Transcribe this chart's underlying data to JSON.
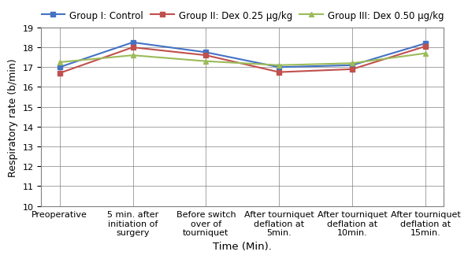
{
  "x_labels": [
    "Preoperative",
    "5 min. after\ninitiation of\nsurgery",
    "Before switch\nover of\ntourniquet",
    "After tourniquet\ndeflation at\n5min.",
    "After tourniquet\ndeflation at\n10min.",
    "After tourniquet\ndeflation at\n15min."
  ],
  "xlabel": "Time (Min).",
  "ylabel": "Respiratory rate (b/min)",
  "ylim": [
    10,
    19
  ],
  "yticks": [
    10,
    11,
    12,
    13,
    14,
    15,
    16,
    17,
    18,
    19
  ],
  "series": [
    {
      "label": "Group I: Control",
      "color": "#4472C4",
      "marker": "s",
      "values": [
        17.0,
        18.25,
        17.75,
        17.0,
        17.1,
        18.2
      ]
    },
    {
      "label": "Group II: Dex 0.25 μg/kg",
      "color": "#C0504D",
      "marker": "s",
      "values": [
        16.7,
        18.0,
        17.6,
        16.75,
        16.9,
        18.05
      ]
    },
    {
      "label": "Group III: Dex 0.50 μg/kg",
      "color": "#9BBB59",
      "marker": "^",
      "values": [
        17.25,
        17.6,
        17.3,
        17.1,
        17.2,
        17.7
      ]
    }
  ],
  "legend_ncol": 3,
  "legend_fontsize": 8.5,
  "axis_fontsize": 9,
  "tick_fontsize": 8,
  "xlabel_fontsize": 9.5,
  "linewidth": 1.5,
  "markersize": 5
}
